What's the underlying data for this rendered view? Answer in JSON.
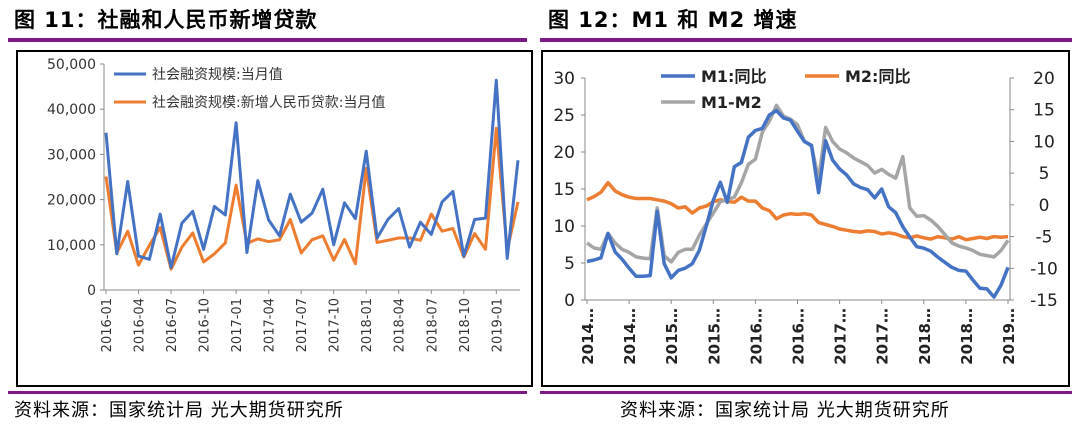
{
  "left": {
    "fig_title": "图 11：社融和人民币新增贷款",
    "source": "资料来源：国家统计局 光大期货研究所"
  },
  "right": {
    "fig_title": "图 12：M1 和 M2 增速",
    "source": "资料来源：国家统计局 光大期货研究所"
  },
  "colors": {
    "blue": "#4472c4",
    "orange": "#ed7d31",
    "gray": "#a5a5a5",
    "rule": "#7b1a85"
  },
  "chart_data": [
    {
      "type": "line",
      "title": "",
      "ylim": [
        0,
        50000
      ],
      "yticks": [
        "0",
        "10,000",
        "20,000",
        "30,000",
        "40,000",
        "50,000"
      ],
      "x_tick_labels": [
        "2016-01",
        "2016-04",
        "2016-07",
        "2016-10",
        "2017-01",
        "2017-04",
        "2017-07",
        "2017-10",
        "2018-01",
        "2018-04",
        "2018-07",
        "2018-10",
        "2019-01"
      ],
      "grid": false,
      "legend": "top",
      "series": [
        {
          "name": "社会融资规模:当月值",
          "color": "blue",
          "values": [
            34800,
            8000,
            24000,
            7500,
            6800,
            16800,
            5000,
            14800,
            17400,
            9000,
            18500,
            16600,
            37000,
            8300,
            24200,
            15500,
            12000,
            21200,
            15000,
            17000,
            22300,
            10000,
            19300,
            15800,
            30700,
            11500,
            15600,
            18000,
            9500,
            15000,
            12300,
            19500,
            21800,
            7500,
            15600,
            15900,
            46400,
            7000,
            28700
          ]
        },
        {
          "name": "社会融资规模:新增人民币贷款:当月值",
          "color": "orange",
          "values": [
            25100,
            8200,
            13000,
            5500,
            9900,
            13800,
            4600,
            9500,
            12600,
            6200,
            8000,
            10400,
            23200,
            10300,
            11300,
            10700,
            11100,
            15600,
            8200,
            11100,
            12000,
            6600,
            11200,
            5800,
            26900,
            10500,
            11000,
            11500,
            11500,
            11000,
            16800,
            13000,
            13600,
            7300,
            12500,
            9000,
            35800,
            8800,
            19500
          ]
        }
      ]
    },
    {
      "type": "line",
      "title": "",
      "left_ylim": [
        0,
        30
      ],
      "right_ylim": [
        -15,
        20
      ],
      "left_yticks": [
        "0",
        "5",
        "10",
        "15",
        "20",
        "25",
        "30"
      ],
      "right_yticks": [
        "-15",
        "-10",
        "-5",
        "0",
        "5",
        "10",
        "15",
        "20"
      ],
      "x_tick_labels": [
        "2014…",
        "2014…",
        "2015…",
        "2015…",
        "2016…",
        "2016…",
        "2017…",
        "2017…",
        "2018…",
        "2018…",
        "2019…"
      ],
      "grid": false,
      "legend": "top",
      "series": [
        {
          "name": "M1:同比",
          "color": "blue",
          "axis": "left",
          "values": [
            5.2,
            5.4,
            5.7,
            9.0,
            6.5,
            5.5,
            4.3,
            3.2,
            3.2,
            3.3,
            12.0,
            4.9,
            3.0,
            4.0,
            4.3,
            4.9,
            6.7,
            10.0,
            13.5,
            15.9,
            13.2,
            18.0,
            18.6,
            22.0,
            22.9,
            23.2,
            25.0,
            25.6,
            24.6,
            24.3,
            22.8,
            21.4,
            20.9,
            14.5,
            21.5,
            18.9,
            17.7,
            16.9,
            15.7,
            15.2,
            14.9,
            13.8,
            15.0,
            12.6,
            11.8,
            9.9,
            8.5,
            7.2,
            7.0,
            6.6,
            5.8,
            5.1,
            4.4,
            4.0,
            3.9,
            2.7,
            1.6,
            1.5,
            0.4,
            2.0,
            4.4
          ]
        },
        {
          "name": "M2:同比",
          "color": "orange",
          "axis": "right",
          "values": [
            0.8,
            1.3,
            2.0,
            3.5,
            2.2,
            1.6,
            1.2,
            1.0,
            1.0,
            1.0,
            0.8,
            0.6,
            0.2,
            -0.5,
            -0.3,
            -1.3,
            -0.5,
            -0.2,
            0.5,
            0.8,
            0.6,
            0.4,
            1.2,
            0.6,
            0.6,
            -0.5,
            -0.9,
            -2.2,
            -1.6,
            -1.4,
            -1.5,
            -1.4,
            -1.6,
            -2.8,
            -3.1,
            -3.4,
            -3.8,
            -4.0,
            -4.2,
            -4.3,
            -4.1,
            -4.2,
            -4.6,
            -4.4,
            -4.6,
            -5.0,
            -5.2,
            -4.9,
            -5.2,
            -5.4,
            -5.0,
            -5.2,
            -5.4,
            -5.0,
            -5.5,
            -5.3,
            -5.1,
            -5.3,
            -5.0,
            -5.1,
            -5.0
          ]
        },
        {
          "name": "M1-M2",
          "color": "gray",
          "axis": "right",
          "values": [
            -6.0,
            -6.8,
            -7.0,
            -4.5,
            -6.0,
            -7.0,
            -7.5,
            -8.2,
            -8.4,
            -8.5,
            -0.5,
            -8.0,
            -9.0,
            -7.5,
            -7.0,
            -7.0,
            -4.8,
            -3.0,
            -1.3,
            0.5,
            0.8,
            1.2,
            3.5,
            6.4,
            7.2,
            11.5,
            13.2,
            15.7,
            14.0,
            13.5,
            12.6,
            10.0,
            9.3,
            4.0,
            12.2,
            10.0,
            8.8,
            8.2,
            7.4,
            6.8,
            6.2,
            5.0,
            5.6,
            4.8,
            4.2,
            7.6,
            -0.5,
            -1.8,
            -1.7,
            -2.4,
            -3.4,
            -4.7,
            -6.0,
            -6.5,
            -6.8,
            -7.2,
            -7.8,
            -8.0,
            -8.2,
            -7.2,
            -5.6
          ]
        }
      ]
    }
  ]
}
